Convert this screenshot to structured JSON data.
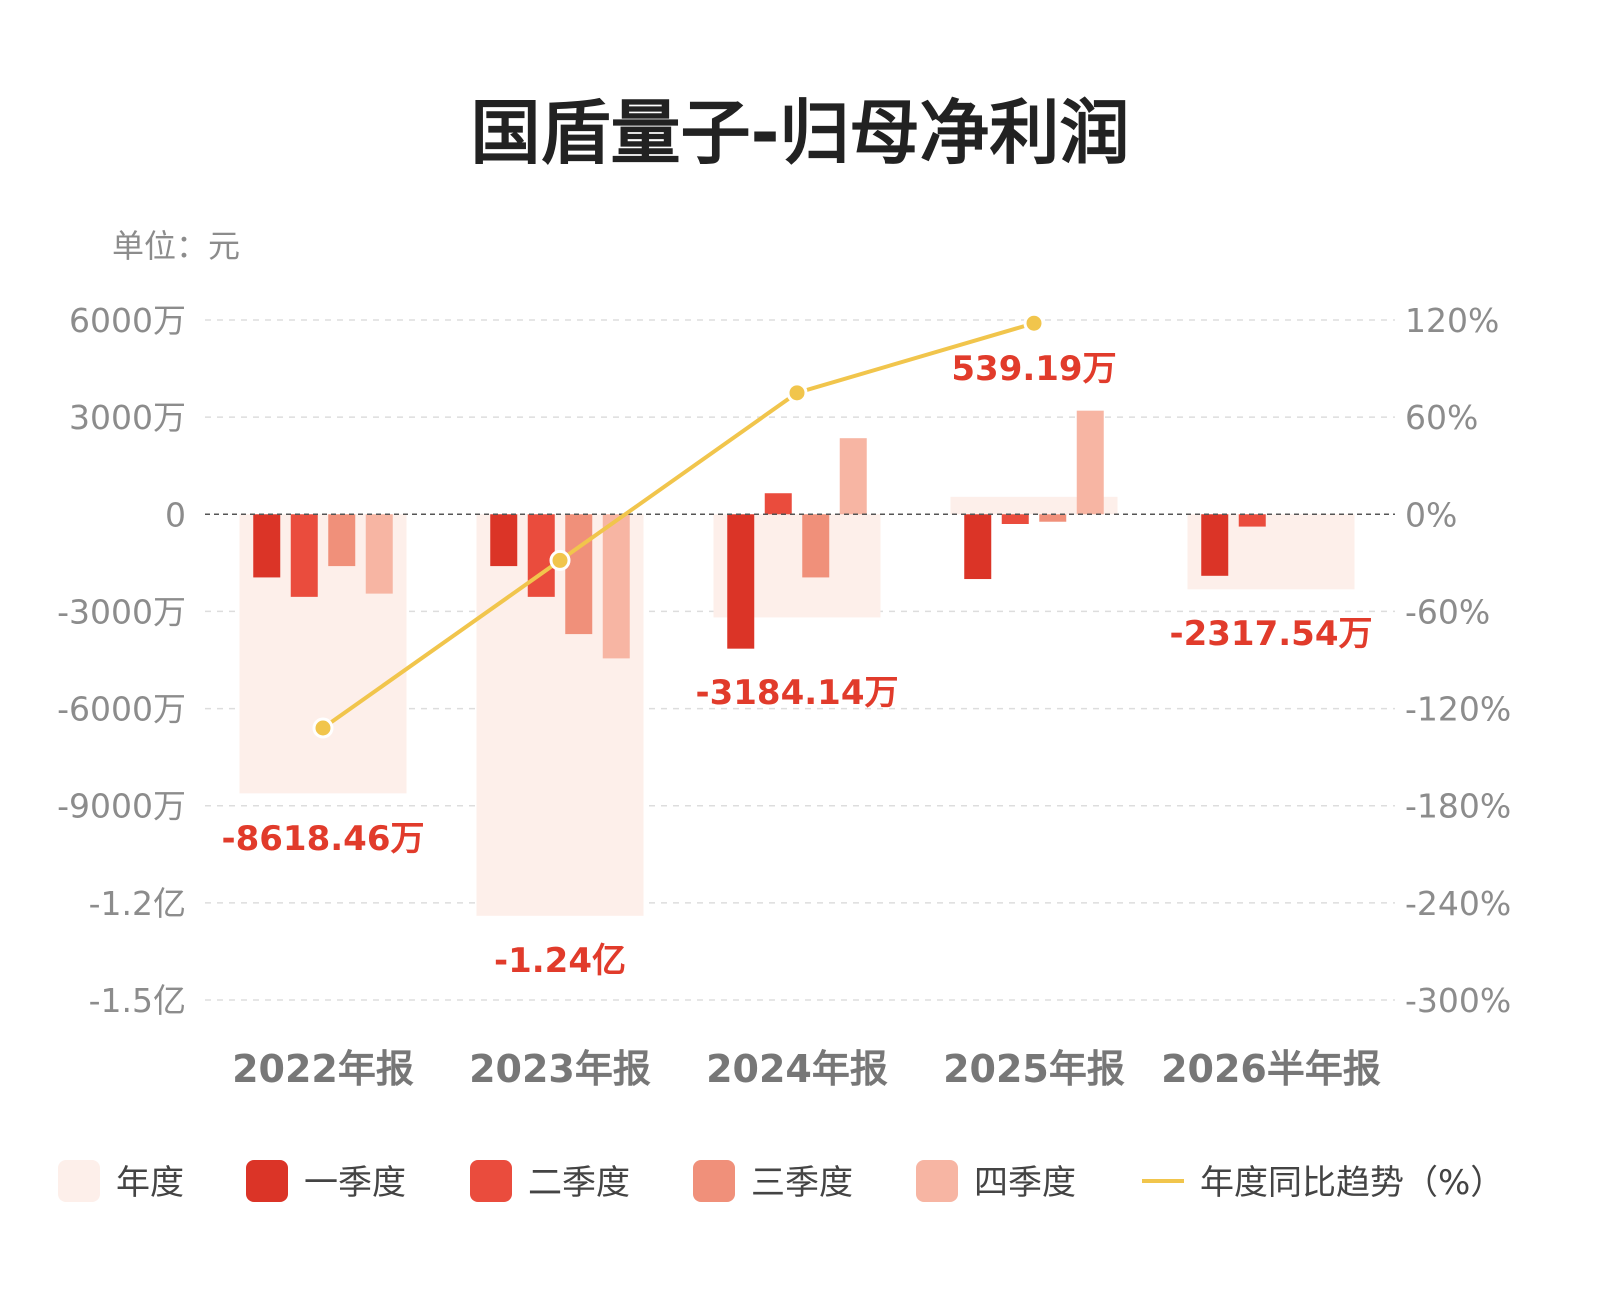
{
  "title": "国盾量子-归母净利润",
  "unit_label": "单位：元",
  "chart_data": {
    "type": "bar",
    "categories": [
      "2022年报",
      "2023年报",
      "2024年报",
      "2025年报",
      "2026半年报"
    ],
    "series": [
      {
        "name": "年度",
        "values": [
          -8618.46,
          -12400,
          -3184.14,
          539.19,
          -2317.54
        ]
      },
      {
        "name": "一季度",
        "values": [
          -1950,
          -1600,
          -4150,
          -2000,
          -1900
        ]
      },
      {
        "name": "二季度",
        "values": [
          -2550,
          -2550,
          650,
          -300,
          -380
        ]
      },
      {
        "name": "三季度",
        "values": [
          -1600,
          -3700,
          -1950,
          -230,
          null
        ]
      },
      {
        "name": "四季度",
        "values": [
          -2450,
          -4450,
          2350,
          3200,
          null
        ]
      },
      {
        "name": "年度同比趋势（%）",
        "axis": "right",
        "values": [
          -132,
          null,
          75,
          118,
          null
        ],
        "extra_point": {
          "between": [
            1,
            2
          ],
          "value": -43
        }
      }
    ],
    "annual_labels": [
      "-8618.46万",
      "-1.24亿",
      "-3184.14万",
      "539.19万",
      "-2317.54万"
    ],
    "y_left": {
      "ticks": [
        6000,
        3000,
        0,
        -3000,
        -6000,
        -9000,
        -12000,
        -15000
      ],
      "tick_labels": [
        "6000万",
        "3000万",
        "0",
        "-3000万",
        "-6000万",
        "-9000万",
        "-1.2亿",
        "-1.5亿"
      ],
      "range": [
        -15000,
        6000
      ]
    },
    "y_right": {
      "ticks": [
        120,
        60,
        0,
        -60,
        -120,
        -180,
        -240,
        -300
      ],
      "tick_labels": [
        "120%",
        "60%",
        "0%",
        "-60%",
        "-120%",
        "-180%",
        "-240%",
        "-300%"
      ],
      "range": [
        -300,
        120
      ]
    },
    "grid": true,
    "legend_position": "bottom"
  },
  "colors": {
    "annual": "#fdefea",
    "q1": "#db3427",
    "q2": "#ea4c3d",
    "q3": "#f0907a",
    "q4": "#f7b5a3",
    "trend": "#f1c54c",
    "annotation": "#e13b2b",
    "grid": "#dddddd",
    "zero_line": "#555555"
  },
  "legend": [
    {
      "label": "年度",
      "key": "annual",
      "kind": "box"
    },
    {
      "label": "一季度",
      "key": "q1",
      "kind": "box"
    },
    {
      "label": "二季度",
      "key": "q2",
      "kind": "box"
    },
    {
      "label": "三季度",
      "key": "q3",
      "kind": "box"
    },
    {
      "label": "四季度",
      "key": "q4",
      "kind": "box"
    },
    {
      "label": "年度同比趋势（%）",
      "key": "trend",
      "kind": "line"
    }
  ]
}
